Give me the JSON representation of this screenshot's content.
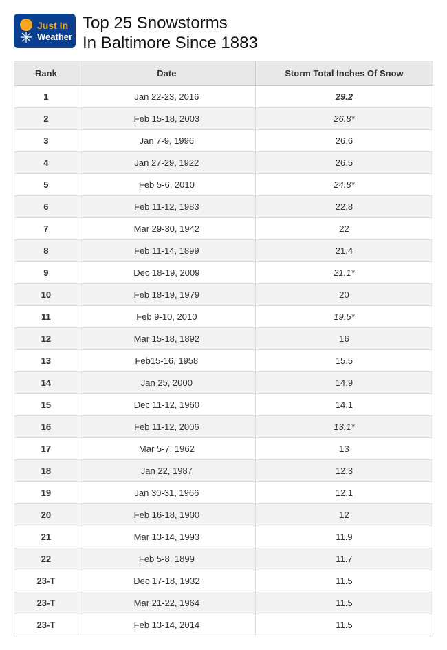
{
  "title_line1": "Top 25 Snowstorms",
  "title_line2": "In Baltimore Since 1883",
  "logo": {
    "brand_top": "Just In",
    "brand_bottom": "Weather",
    "bg_color": "#0a3e8f",
    "text_color": "#f5a623",
    "accent_color": "#ffffff"
  },
  "columns": {
    "rank": "Rank",
    "date": "Date",
    "snow": "Storm Total Inches Of Snow"
  },
  "rows": [
    {
      "rank": "1",
      "date": "Jan 22-23, 2016",
      "snow": "29.2",
      "bold": true,
      "italic": true
    },
    {
      "rank": "2",
      "date": "Feb 15-18, 2003",
      "snow": "26.8*",
      "italic": true
    },
    {
      "rank": "3",
      "date": "Jan 7-9, 1996",
      "snow": "26.6"
    },
    {
      "rank": "4",
      "date": "Jan 27-29, 1922",
      "snow": "26.5"
    },
    {
      "rank": "5",
      "date": "Feb 5-6, 2010",
      "snow": "24.8*",
      "italic": true
    },
    {
      "rank": "6",
      "date": "Feb 11-12, 1983",
      "snow": "22.8"
    },
    {
      "rank": "7",
      "date": "Mar 29-30, 1942",
      "snow": "22"
    },
    {
      "rank": "8",
      "date": "Feb 11-14, 1899",
      "snow": "21.4"
    },
    {
      "rank": "9",
      "date": "Dec 18-19, 2009",
      "snow": "21.1*",
      "italic": true
    },
    {
      "rank": "10",
      "date": "Feb 18-19, 1979",
      "snow": "20"
    },
    {
      "rank": "11",
      "date": "Feb 9-10, 2010",
      "snow": "19.5*",
      "italic": true
    },
    {
      "rank": "12",
      "date": "Mar 15-18, 1892",
      "snow": "16"
    },
    {
      "rank": "13",
      "date": "Feb15-16, 1958",
      "snow": "15.5"
    },
    {
      "rank": "14",
      "date": "Jan 25, 2000",
      "snow": "14.9"
    },
    {
      "rank": "15",
      "date": "Dec 11-12, 1960",
      "snow": "14.1"
    },
    {
      "rank": "16",
      "date": "Feb 11-12, 2006",
      "snow": "13.1*",
      "italic": true
    },
    {
      "rank": "17",
      "date": "Mar 5-7, 1962",
      "snow": "13"
    },
    {
      "rank": "18",
      "date": "Jan 22, 1987",
      "snow": "12.3"
    },
    {
      "rank": "19",
      "date": "Jan 30-31, 1966",
      "snow": "12.1"
    },
    {
      "rank": "20",
      "date": "Feb 16-18, 1900",
      "snow": "12"
    },
    {
      "rank": "21",
      "date": "Mar 13-14, 1993",
      "snow": "11.9"
    },
    {
      "rank": "22",
      "date": "Feb 5-8, 1899",
      "snow": "11.7"
    },
    {
      "rank": "23-T",
      "date": "Dec 17-18, 1932",
      "snow": "11.5"
    },
    {
      "rank": "23-T",
      "date": "Mar 21-22, 1964",
      "snow": "11.5"
    },
    {
      "rank": "23-T",
      "date": "Feb 13-14, 2014",
      "snow": "11.5"
    }
  ]
}
